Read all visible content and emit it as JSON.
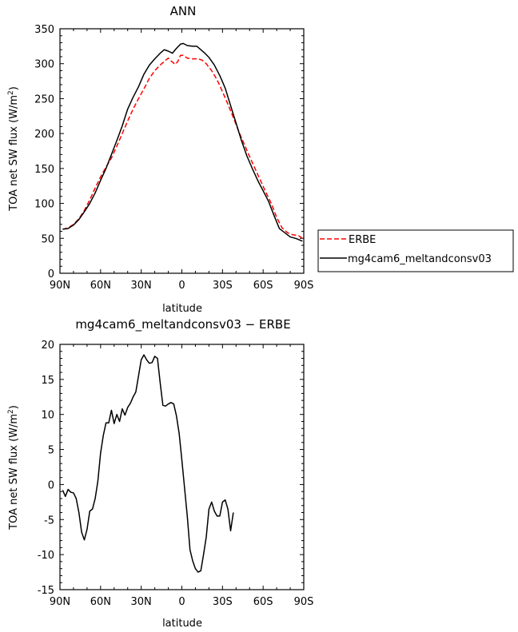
{
  "chart_data": [
    {
      "type": "line",
      "title": "ANN",
      "xlabel": "latitude",
      "ylabel_prefix": "TOA net SW flux (W/m",
      "ylabel_sup": "2",
      "ylabel_suffix": ")",
      "xlim": [
        90,
        -90
      ],
      "ylim": [
        0,
        350
      ],
      "xticks": [
        {
          "value": 90,
          "label": "90N"
        },
        {
          "value": 60,
          "label": "60N"
        },
        {
          "value": 30,
          "label": "30N"
        },
        {
          "value": 0,
          "label": "0"
        },
        {
          "value": -30,
          "label": "30S"
        },
        {
          "value": -60,
          "label": "60S"
        },
        {
          "value": -90,
          "label": "90S"
        }
      ],
      "yticks": [
        0,
        50,
        100,
        150,
        200,
        250,
        300,
        350
      ],
      "legend_placement": "right",
      "series": [
        {
          "name": "ERBE",
          "color": "#ff0000",
          "dash": "dashed",
          "points": [
            [
              88,
              63
            ],
            [
              84,
              65
            ],
            [
              80,
              70
            ],
            [
              76,
              78
            ],
            [
              72,
              90
            ],
            [
              68,
              105
            ],
            [
              64,
              122
            ],
            [
              60,
              138
            ],
            [
              56,
              152
            ],
            [
              52,
              165
            ],
            [
              48,
              182
            ],
            [
              44,
              200
            ],
            [
              40,
              218
            ],
            [
              36,
              235
            ],
            [
              32,
              250
            ],
            [
              28,
              264
            ],
            [
              24,
              279
            ],
            [
              20,
              290
            ],
            [
              16,
              298
            ],
            [
              12,
              305
            ],
            [
              10,
              308
            ],
            [
              8,
              304
            ],
            [
              5,
              299
            ],
            [
              3,
              303
            ],
            [
              1,
              312
            ],
            [
              -1,
              312
            ],
            [
              -4,
              308
            ],
            [
              -8,
              307
            ],
            [
              -12,
              307
            ],
            [
              -15,
              305
            ],
            [
              -18,
              300
            ],
            [
              -22,
              290
            ],
            [
              -26,
              277
            ],
            [
              -30,
              260
            ],
            [
              -34,
              242
            ],
            [
              -38,
              223
            ],
            [
              -42,
              203
            ],
            [
              -46,
              185
            ],
            [
              -50,
              167
            ],
            [
              -54,
              150
            ],
            [
              -58,
              133
            ],
            [
              -62,
              116
            ],
            [
              -66,
              100
            ],
            [
              -70,
              80
            ],
            [
              -74,
              65
            ],
            [
              -78,
              58
            ],
            [
              -82,
              55
            ],
            [
              -86,
              54
            ],
            [
              -89,
              50
            ]
          ]
        },
        {
          "name": "mg4cam6_meltandconsv03",
          "color": "#000000",
          "dash": "solid",
          "points": [
            [
              88,
              63
            ],
            [
              84,
              64
            ],
            [
              80,
              69
            ],
            [
              76,
              77
            ],
            [
              72,
              88
            ],
            [
              68,
              100
            ],
            [
              64,
              115
            ],
            [
              60,
              133
            ],
            [
              56,
              150
            ],
            [
              52,
              170
            ],
            [
              48,
              190
            ],
            [
              44,
              211
            ],
            [
              40,
              235
            ],
            [
              36,
              252
            ],
            [
              32,
              267
            ],
            [
              28,
              285
            ],
            [
              24,
              298
            ],
            [
              20,
              307
            ],
            [
              16,
              315
            ],
            [
              13,
              320
            ],
            [
              10,
              318
            ],
            [
              7,
              315
            ],
            [
              4,
              322
            ],
            [
              1,
              328
            ],
            [
              -1,
              329
            ],
            [
              -4,
              326
            ],
            [
              -8,
              325
            ],
            [
              -11,
              325
            ],
            [
              -14,
              320
            ],
            [
              -17,
              315
            ],
            [
              -20,
              309
            ],
            [
              -24,
              298
            ],
            [
              -28,
              283
            ],
            [
              -32,
              265
            ],
            [
              -36,
              240
            ],
            [
              -40,
              215
            ],
            [
              -44,
              190
            ],
            [
              -48,
              168
            ],
            [
              -52,
              150
            ],
            [
              -56,
              133
            ],
            [
              -60,
              118
            ],
            [
              -64,
              103
            ],
            [
              -68,
              83
            ],
            [
              -72,
              64
            ],
            [
              -76,
              58
            ],
            [
              -80,
              52
            ],
            [
              -84,
              50
            ],
            [
              -89,
              46
            ]
          ]
        }
      ]
    },
    {
      "type": "line",
      "title": "mg4cam6_meltandconsv03 − ERBE",
      "xlabel": "latitude",
      "ylabel_prefix": "TOA net SW flux (W/m",
      "ylabel_sup": "2",
      "ylabel_suffix": ")",
      "xlim": [
        90,
        -90
      ],
      "ylim": [
        -15,
        20
      ],
      "xticks": [
        {
          "value": 90,
          "label": "90N"
        },
        {
          "value": 60,
          "label": "60N"
        },
        {
          "value": 30,
          "label": "30N"
        },
        {
          "value": 0,
          "label": "0"
        },
        {
          "value": -30,
          "label": "30S"
        },
        {
          "value": -60,
          "label": "60S"
        },
        {
          "value": -90,
          "label": "90S"
        }
      ],
      "yticks": [
        -15,
        -10,
        -5,
        0,
        5,
        10,
        15,
        20
      ],
      "series": [
        {
          "color": "#000000",
          "dash": "solid",
          "points": [
            [
              88,
              -0.8
            ],
            [
              86,
              -1.7
            ],
            [
              84,
              -0.7
            ],
            [
              82,
              -1.1
            ],
            [
              80,
              -1.2
            ],
            [
              78,
              -2.0
            ],
            [
              76,
              -4.0
            ],
            [
              74,
              -6.8
            ],
            [
              72,
              -7.9
            ],
            [
              70,
              -6.4
            ],
            [
              68,
              -3.8
            ],
            [
              66,
              -3.5
            ],
            [
              64,
              -2.0
            ],
            [
              62,
              0.5
            ],
            [
              60,
              4.5
            ],
            [
              58,
              7.0
            ],
            [
              56,
              8.8
            ],
            [
              54,
              8.8
            ],
            [
              52,
              10.6
            ],
            [
              50,
              8.7
            ],
            [
              48,
              10.0
            ],
            [
              46,
              9.0
            ],
            [
              44,
              10.8
            ],
            [
              42,
              9.9
            ],
            [
              40,
              11.0
            ],
            [
              38,
              11.6
            ],
            [
              36,
              12.5
            ],
            [
              34,
              13.2
            ],
            [
              32,
              15.5
            ],
            [
              30,
              17.8
            ],
            [
              28,
              18.5
            ],
            [
              26,
              17.8
            ],
            [
              24,
              17.3
            ],
            [
              22,
              17.4
            ],
            [
              20,
              18.3
            ],
            [
              18,
              18.0
            ],
            [
              16,
              14.5
            ],
            [
              14,
              11.3
            ],
            [
              12,
              11.2
            ],
            [
              10,
              11.5
            ],
            [
              8,
              11.7
            ],
            [
              6,
              11.5
            ],
            [
              4,
              9.8
            ],
            [
              2,
              7.3
            ],
            [
              0,
              3.5
            ],
            [
              -2,
              -0.5
            ],
            [
              -4,
              -4.5
            ],
            [
              -6,
              -9.3
            ],
            [
              -8,
              -10.9
            ],
            [
              -10,
              -12.0
            ],
            [
              -12,
              -12.5
            ],
            [
              -14,
              -12.3
            ],
            [
              -16,
              -10.0
            ],
            [
              -18,
              -7.5
            ],
            [
              -20,
              -3.5
            ],
            [
              -22,
              -2.5
            ],
            [
              -24,
              -3.8
            ],
            [
              -26,
              -4.5
            ],
            [
              -28,
              -4.5
            ],
            [
              -30,
              -2.5
            ],
            [
              -32,
              -2.2
            ],
            [
              -34,
              -3.5
            ],
            [
              -36,
              -6.6
            ],
            [
              -38,
              -4.0
            ]
          ]
        }
      ]
    }
  ]
}
